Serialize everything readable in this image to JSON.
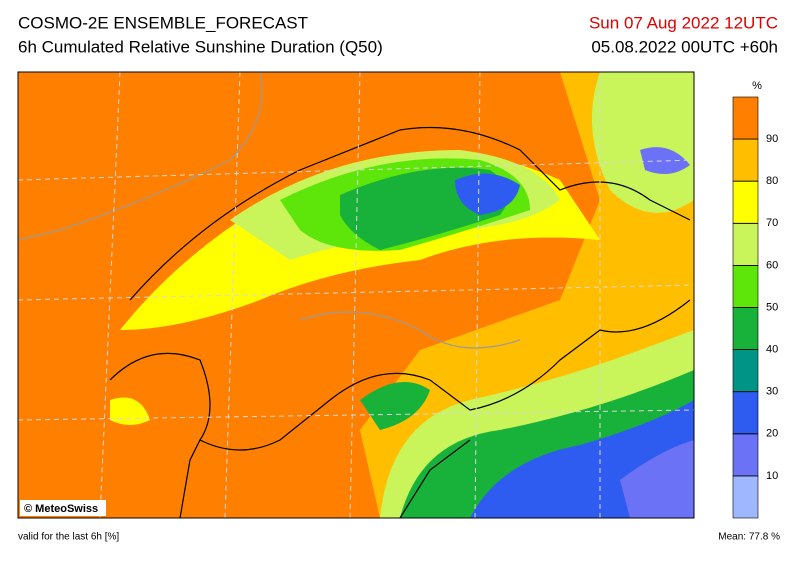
{
  "header": {
    "title": "COSMO-2E ENSEMBLE_FORECAST",
    "subtitle": "6h Cumulated Relative Sunshine Duration (Q50)",
    "valid_time": "Sun 07 Aug 2022 12UTC",
    "run": "05.08.2022 00UTC +60h"
  },
  "colorbar": {
    "unit": "%",
    "ticks": [
      10,
      20,
      30,
      40,
      50,
      60,
      70,
      80,
      90
    ],
    "colors": [
      "#9fb7ff",
      "#6b72f5",
      "#2f5cf0",
      "#009486",
      "#18b23a",
      "#5ee60a",
      "#c9f55a",
      "#ffff00",
      "#ffbf00",
      "#ff7f00"
    ]
  },
  "copyright": "© MeteoSwiss",
  "footer": {
    "note": "valid for the last 6h [%]",
    "mean": "Mean:  77.8 %"
  }
}
